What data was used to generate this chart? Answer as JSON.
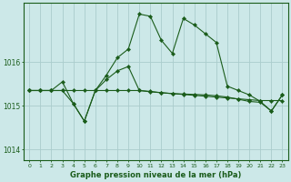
{
  "xlabel": "Graphe pression niveau de la mer (hPa)",
  "background_color": "#cce8e8",
  "grid_color": "#aacccc",
  "line_color": "#1a5c1a",
  "ylim": [
    1013.75,
    1017.35
  ],
  "yticks": [
    1014,
    1015,
    1016
  ],
  "series1": [
    1015.35,
    1015.35,
    1015.35,
    1015.55,
    1015.05,
    1014.65,
    1015.35,
    1015.7,
    1016.1,
    1016.3,
    1017.1,
    1017.05,
    1016.5,
    1016.2,
    1017.0,
    1016.85,
    1016.65,
    1016.45,
    1015.45,
    1015.35,
    1015.25,
    1015.1,
    1014.88,
    1015.25
  ],
  "series2": [
    1015.35,
    1015.35,
    1015.35,
    1015.35,
    1015.35,
    1015.35,
    1015.35,
    1015.35,
    1015.35,
    1015.35,
    1015.35,
    1015.33,
    1015.3,
    1015.28,
    1015.26,
    1015.24,
    1015.22,
    1015.2,
    1015.18,
    1015.16,
    1015.14,
    1015.12,
    1015.12,
    1015.12
  ],
  "series3": [
    1015.35,
    1015.35,
    1015.35,
    1015.35,
    1015.05,
    1014.65,
    1015.35,
    1015.6,
    1015.8,
    1015.9,
    1015.35,
    1015.32,
    1015.3,
    1015.28,
    1015.27,
    1015.26,
    1015.25,
    1015.23,
    1015.2,
    1015.15,
    1015.1,
    1015.08,
    1014.88,
    1015.25
  ],
  "x_labels": [
    "0",
    "1",
    "2",
    "3",
    "4",
    "5",
    "6",
    "7",
    "8",
    "9",
    "10",
    "11",
    "12",
    "13",
    "14",
    "15",
    "16",
    "17",
    "18",
    "19",
    "20",
    "21",
    "22",
    "23"
  ]
}
